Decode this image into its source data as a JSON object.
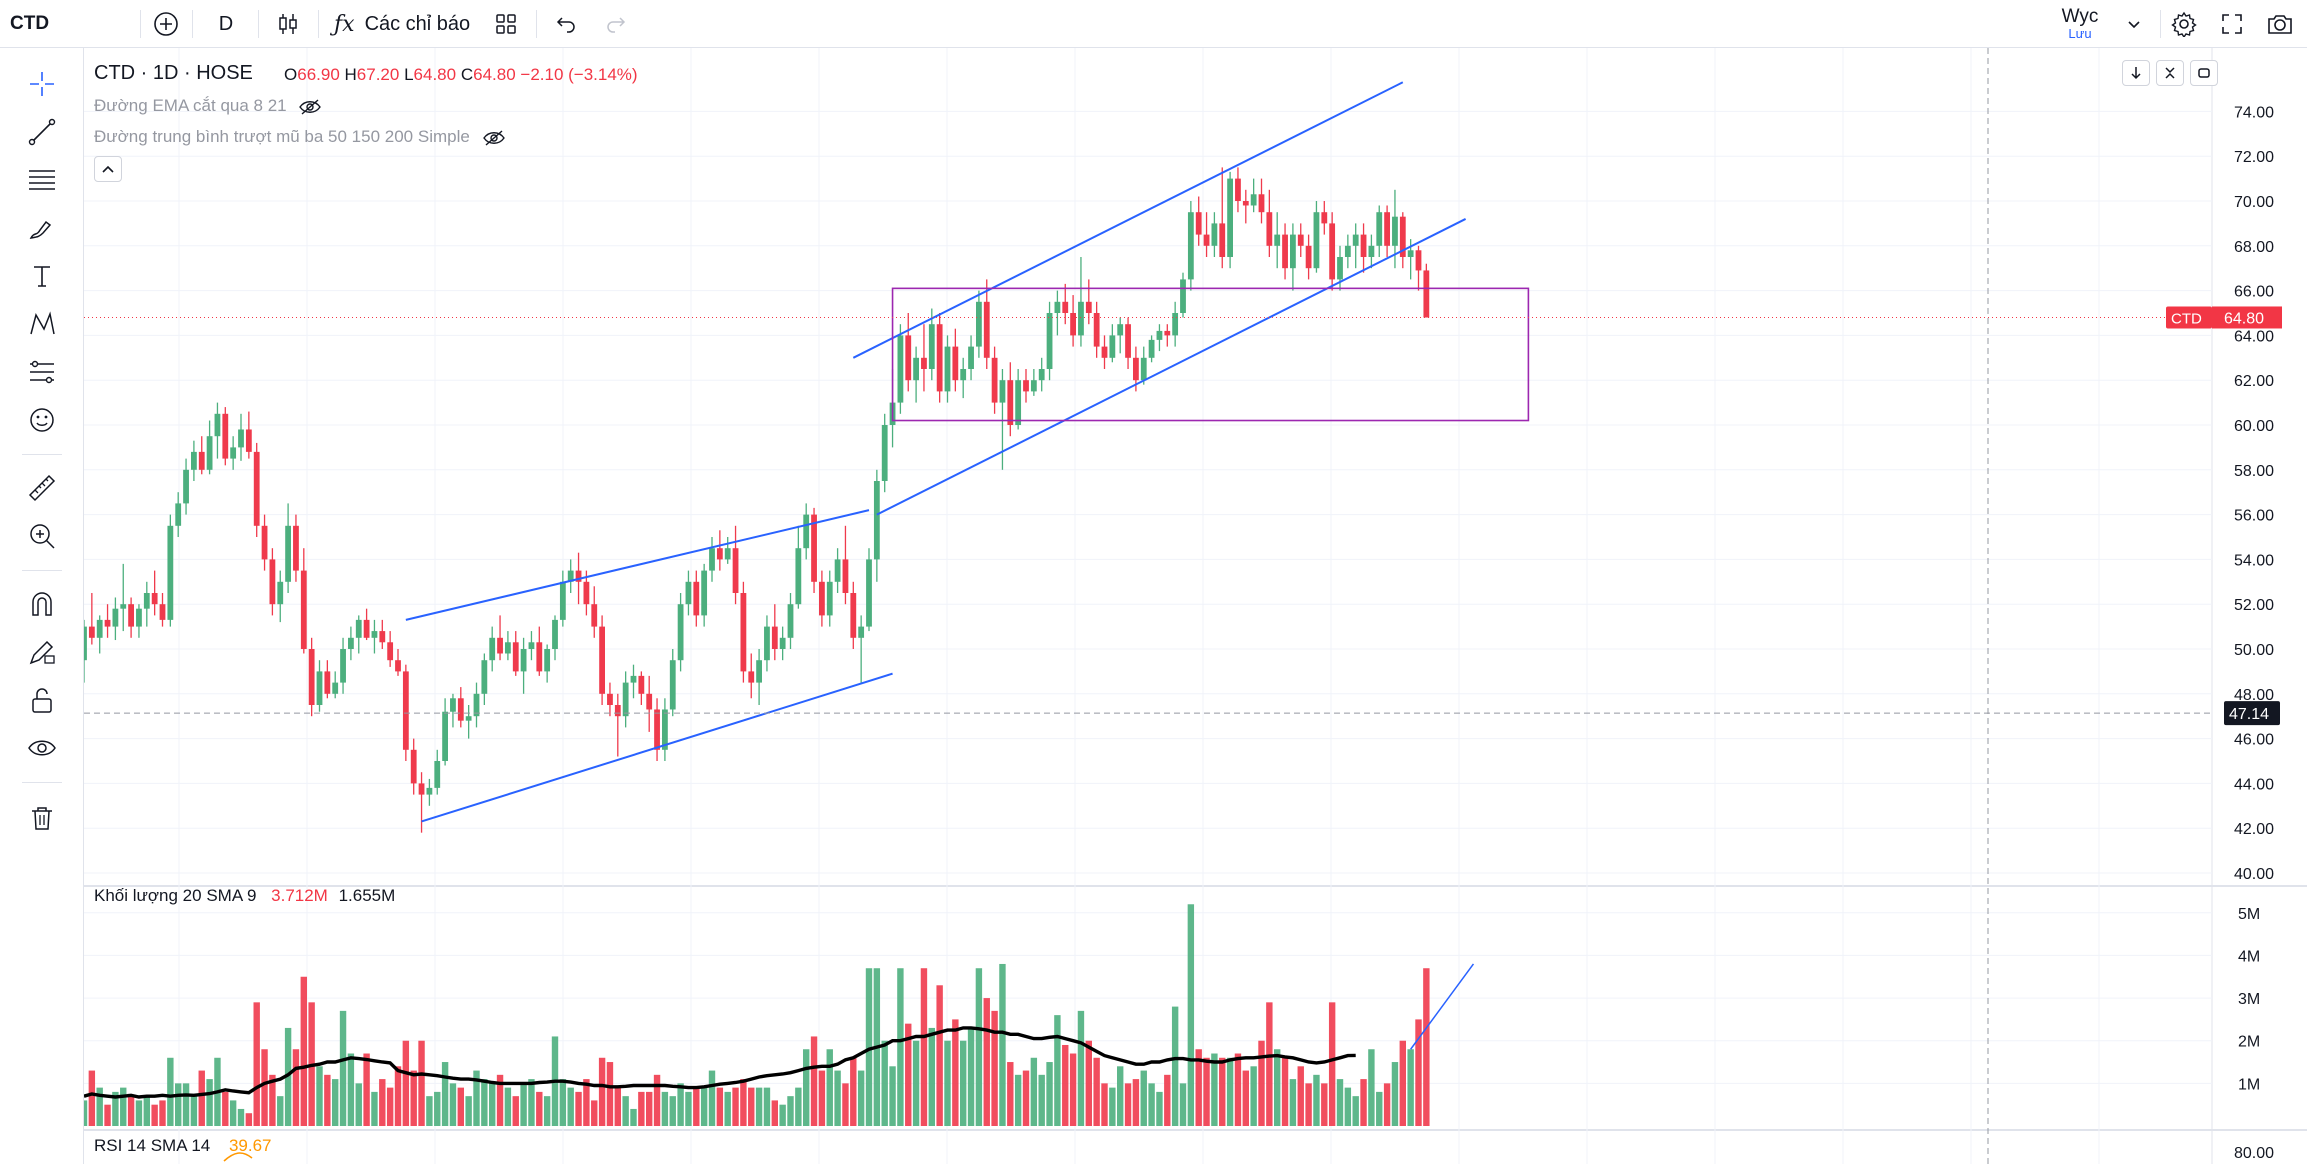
{
  "toolbar": {
    "symbol": "CTD",
    "interval": "D",
    "indicators_label": "Các chỉ báo",
    "layout_name": "Wyc",
    "layout_status": "Lưu"
  },
  "legend": {
    "title": "CTD · 1D · HOSE",
    "open_label": "O",
    "open": "66.90",
    "high_label": "H",
    "high": "67.20",
    "low_label": "L",
    "low": "64.80",
    "close_label": "C",
    "close": "64.80",
    "change": "−2.10 (−3.14%)",
    "ind1": "Đường EMA cắt qua 8 21",
    "ind2": "Đường trung bình trượt mũ ba 50 150 200 Simple",
    "volume_label": "Khối lượng 20 SMA 9",
    "volume_value": "3.712M",
    "volume_sma": "1.655M",
    "rsi_label": "RSI 14 SMA 14",
    "rsi_value": "39.67"
  },
  "price_axis": {
    "ticks": [
      "74.00",
      "72.00",
      "70.00",
      "68.00",
      "66.00",
      "64.00",
      "62.00",
      "60.00",
      "58.00",
      "56.00",
      "54.00",
      "52.00",
      "50.00",
      "48.00",
      "46.00",
      "44.00",
      "42.00",
      "40.00"
    ],
    "last_symbol": "CTD",
    "last_price": "64.80",
    "crosshair_price": "47.14"
  },
  "volume_axis": {
    "ticks": [
      "5M",
      "4M",
      "3M",
      "2M",
      "1M"
    ]
  },
  "rsi_axis": {
    "ticks": [
      "80.00"
    ]
  },
  "colors": {
    "up": "#4caf7e",
    "down": "#ef3a4c",
    "line": "#2962ff",
    "box": "#9c27b0",
    "sma": "#000000"
  },
  "chart_data": {
    "type": "candlestick",
    "symbol": "CTD",
    "interval": "1D",
    "exchange": "HOSE",
    "price_range": [
      39,
      75
    ],
    "volume_range": [
      0,
      5.3
    ],
    "candles": [
      [
        49.5,
        51.3,
        48.5,
        51.0,
        0.6
      ],
      [
        51.0,
        52.5,
        50.2,
        50.5,
        1.3
      ],
      [
        50.5,
        51.5,
        49.8,
        51.3,
        0.9
      ],
      [
        51.3,
        52.0,
        50.5,
        51.0,
        0.5
      ],
      [
        51.0,
        52.3,
        50.4,
        51.8,
        0.8
      ],
      [
        51.8,
        53.8,
        50.8,
        52.0,
        0.9
      ],
      [
        52.0,
        52.3,
        50.5,
        51.0,
        0.7
      ],
      [
        51.0,
        52.0,
        50.5,
        51.8,
        0.6
      ],
      [
        51.8,
        53.0,
        51.0,
        52.5,
        0.7
      ],
      [
        52.5,
        53.5,
        51.5,
        52.0,
        0.5
      ],
      [
        52.0,
        52.5,
        51.0,
        51.3,
        0.6
      ],
      [
        51.3,
        56.0,
        51.0,
        55.5,
        1.6
      ],
      [
        55.5,
        57.0,
        55.0,
        56.5,
        1.0
      ],
      [
        56.5,
        58.5,
        56.0,
        58.0,
        1.0
      ],
      [
        58.0,
        59.3,
        57.5,
        58.8,
        0.7
      ],
      [
        58.8,
        59.5,
        57.8,
        58.0,
        1.3
      ],
      [
        58.0,
        60.2,
        57.8,
        59.5,
        1.1
      ],
      [
        59.5,
        61.0,
        58.5,
        60.5,
        1.6
      ],
      [
        60.5,
        60.8,
        58.2,
        58.5,
        0.8
      ],
      [
        58.5,
        59.5,
        58.0,
        59.0,
        0.6
      ],
      [
        59.0,
        60.5,
        58.4,
        59.8,
        0.4
      ],
      [
        59.8,
        60.6,
        58.5,
        58.8,
        0.3
      ],
      [
        58.8,
        59.2,
        55.0,
        55.5,
        2.9
      ],
      [
        55.5,
        56.0,
        53.5,
        54.0,
        1.8
      ],
      [
        54.0,
        54.5,
        51.5,
        52.0,
        1.2
      ],
      [
        52.0,
        53.5,
        51.2,
        53.0,
        0.7
      ],
      [
        53.0,
        56.5,
        52.5,
        55.5,
        2.3
      ],
      [
        55.5,
        56.0,
        53.0,
        53.5,
        1.8
      ],
      [
        53.5,
        54.5,
        49.8,
        50.0,
        3.5
      ],
      [
        50.0,
        50.5,
        47.0,
        47.5,
        2.9
      ],
      [
        47.5,
        49.5,
        47.2,
        49.0,
        1.4
      ],
      [
        49.0,
        49.5,
        47.8,
        48.0,
        1.2
      ],
      [
        48.0,
        49.0,
        47.8,
        48.5,
        1.1
      ],
      [
        48.5,
        50.5,
        48.0,
        50.0,
        2.7
      ],
      [
        50.0,
        51.0,
        49.5,
        50.5,
        1.7
      ],
      [
        50.5,
        51.5,
        49.8,
        51.3,
        1.0
      ],
      [
        51.3,
        51.8,
        50.4,
        50.5,
        1.7
      ],
      [
        50.5,
        51.3,
        49.8,
        50.8,
        0.8
      ],
      [
        50.8,
        51.3,
        50.0,
        50.3,
        1.1
      ],
      [
        50.3,
        50.8,
        49.2,
        49.5,
        0.9
      ],
      [
        49.5,
        50.0,
        48.8,
        49.0,
        1.4
      ],
      [
        49.0,
        49.3,
        45.0,
        45.5,
        2.0
      ],
      [
        45.5,
        46.0,
        43.5,
        44.0,
        1.3
      ],
      [
        44.0,
        44.5,
        41.8,
        43.5,
        2.0
      ],
      [
        43.5,
        44.2,
        43.0,
        43.8,
        0.7
      ],
      [
        43.8,
        45.5,
        43.5,
        45.0,
        0.8
      ],
      [
        45.0,
        47.8,
        44.8,
        47.2,
        1.5
      ],
      [
        47.2,
        48.0,
        46.5,
        47.8,
        1.0
      ],
      [
        47.8,
        48.3,
        46.5,
        46.8,
        0.9
      ],
      [
        46.8,
        47.5,
        46.0,
        47.0,
        0.7
      ],
      [
        47.0,
        48.5,
        46.5,
        48.0,
        1.3
      ],
      [
        48.0,
        49.8,
        47.5,
        49.5,
        1.1
      ],
      [
        49.5,
        51.0,
        49.0,
        50.5,
        1.0
      ],
      [
        50.5,
        51.5,
        49.5,
        49.8,
        1.2
      ],
      [
        49.8,
        50.8,
        49.5,
        50.3,
        0.9
      ],
      [
        50.3,
        50.8,
        48.8,
        49.0,
        0.7
      ],
      [
        49.0,
        50.5,
        48.0,
        50.0,
        1.0
      ],
      [
        50.0,
        50.8,
        49.5,
        50.3,
        1.1
      ],
      [
        50.3,
        51.0,
        48.8,
        49.0,
        0.8
      ],
      [
        49.0,
        50.2,
        48.5,
        50.0,
        0.7
      ],
      [
        50.0,
        51.5,
        49.5,
        51.3,
        2.1
      ],
      [
        51.3,
        53.5,
        51.0,
        53.0,
        1.1
      ],
      [
        53.0,
        54.0,
        52.5,
        53.5,
        0.9
      ],
      [
        53.5,
        54.3,
        52.0,
        53.0,
        0.8
      ],
      [
        53.0,
        53.5,
        51.5,
        52.0,
        1.1
      ],
      [
        52.0,
        52.8,
        50.5,
        51.0,
        0.6
      ],
      [
        51.0,
        51.5,
        47.5,
        48.0,
        1.6
      ],
      [
        48.0,
        48.5,
        47.0,
        47.5,
        1.5
      ],
      [
        47.5,
        48.0,
        45.2,
        47.0,
        0.9
      ],
      [
        47.0,
        49.0,
        46.5,
        48.5,
        0.7
      ],
      [
        48.5,
        49.3,
        47.8,
        48.8,
        0.4
      ],
      [
        48.8,
        49.0,
        47.5,
        48.0,
        0.8
      ],
      [
        48.0,
        48.8,
        46.3,
        47.3,
        0.8
      ],
      [
        47.3,
        47.8,
        45.0,
        45.5,
        1.2
      ],
      [
        45.5,
        47.8,
        45.0,
        47.3,
        0.8
      ],
      [
        47.3,
        50.0,
        47.0,
        49.5,
        0.7
      ],
      [
        49.5,
        52.5,
        49.0,
        52.0,
        1.0
      ],
      [
        52.0,
        53.5,
        51.5,
        53.0,
        0.8
      ],
      [
        53.0,
        53.5,
        51.0,
        51.5,
        0.9
      ],
      [
        51.5,
        53.8,
        51.0,
        53.5,
        0.9
      ],
      [
        53.5,
        55.0,
        53.0,
        54.5,
        1.3
      ],
      [
        54.5,
        55.3,
        53.5,
        54.0,
        0.9
      ],
      [
        54.0,
        55.0,
        53.8,
        54.5,
        0.8
      ],
      [
        54.5,
        55.5,
        52.0,
        52.5,
        0.9
      ],
      [
        52.5,
        53.0,
        48.5,
        49.0,
        1.1
      ],
      [
        49.0,
        49.8,
        47.8,
        48.5,
        0.9
      ],
      [
        48.5,
        50.0,
        47.5,
        49.5,
        0.9
      ],
      [
        49.5,
        51.5,
        49.0,
        51.0,
        0.9
      ],
      [
        51.0,
        52.0,
        49.5,
        50.0,
        0.6
      ],
      [
        50.0,
        51.0,
        49.5,
        50.5,
        0.5
      ],
      [
        50.5,
        52.5,
        50.0,
        52.0,
        0.7
      ],
      [
        52.0,
        55.5,
        51.8,
        54.5,
        0.9
      ],
      [
        54.5,
        56.5,
        54.0,
        56.0,
        1.8
      ],
      [
        56.0,
        56.3,
        52.5,
        53.0,
        2.1
      ],
      [
        53.0,
        53.5,
        51.0,
        51.5,
        1.3
      ],
      [
        51.5,
        53.5,
        51.0,
        53.0,
        1.8
      ],
      [
        53.0,
        54.5,
        52.5,
        54.0,
        1.3
      ],
      [
        54.0,
        55.5,
        52.0,
        52.5,
        1.0
      ],
      [
        52.5,
        53.0,
        50.0,
        50.5,
        1.6
      ],
      [
        50.5,
        51.5,
        48.5,
        51.0,
        1.3
      ],
      [
        51.0,
        54.5,
        50.8,
        54.0,
        3.7
      ],
      [
        54.0,
        58.0,
        53.0,
        57.5,
        3.7
      ],
      [
        57.5,
        60.5,
        57.0,
        60.0,
        2.0
      ],
      [
        60.0,
        62.5,
        59.0,
        61.0,
        1.4
      ],
      [
        61.0,
        64.5,
        60.5,
        64.0,
        3.7
      ],
      [
        64.0,
        65.0,
        61.5,
        62.0,
        2.4
      ],
      [
        62.0,
        63.5,
        61.0,
        63.0,
        2.0
      ],
      [
        63.0,
        64.5,
        61.5,
        62.5,
        3.7
      ],
      [
        62.5,
        65.2,
        62.0,
        64.5,
        2.3
      ],
      [
        64.5,
        65.0,
        61.0,
        61.5,
        3.3
      ],
      [
        61.5,
        64.0,
        61.0,
        63.5,
        2.0
      ],
      [
        63.5,
        64.3,
        61.5,
        62.0,
        2.5
      ],
      [
        62.0,
        63.0,
        61.2,
        62.5,
        2.0
      ],
      [
        62.5,
        64.0,
        62.0,
        63.5,
        2.3
      ],
      [
        63.5,
        66.0,
        63.0,
        65.5,
        3.7
      ],
      [
        65.5,
        66.5,
        62.5,
        63.0,
        3.0
      ],
      [
        63.0,
        63.5,
        60.5,
        61.0,
        2.7
      ],
      [
        61.0,
        62.5,
        58.0,
        62.0,
        3.8
      ],
      [
        62.0,
        62.8,
        59.5,
        60.0,
        1.5
      ],
      [
        60.0,
        62.5,
        59.8,
        62.0,
        1.2
      ],
      [
        62.0,
        62.5,
        61.0,
        61.5,
        1.3
      ],
      [
        61.5,
        62.5,
        61.3,
        62.0,
        1.6
      ],
      [
        62.0,
        63.0,
        61.5,
        62.5,
        1.2
      ],
      [
        62.5,
        65.5,
        62.0,
        65.0,
        1.5
      ],
      [
        65.0,
        66.0,
        64.0,
        65.5,
        2.6
      ],
      [
        65.5,
        66.3,
        64.5,
        65.0,
        1.9
      ],
      [
        65.0,
        65.8,
        63.5,
        64.0,
        1.7
      ],
      [
        64.0,
        67.5,
        63.5,
        65.5,
        2.7
      ],
      [
        65.5,
        66.5,
        64.5,
        65.0,
        2.0
      ],
      [
        65.0,
        65.5,
        63.0,
        63.5,
        1.6
      ],
      [
        63.5,
        64.0,
        62.5,
        63.0,
        1.0
      ],
      [
        63.0,
        64.5,
        62.8,
        64.0,
        0.9
      ],
      [
        64.0,
        64.8,
        63.2,
        64.5,
        1.4
      ],
      [
        64.5,
        64.8,
        62.5,
        63.0,
        1.0
      ],
      [
        63.0,
        63.5,
        61.5,
        62.0,
        1.1
      ],
      [
        62.0,
        63.5,
        61.8,
        63.0,
        1.3
      ],
      [
        63.0,
        64.0,
        62.8,
        63.8,
        1.0
      ],
      [
        63.8,
        64.5,
        63.3,
        64.2,
        0.8
      ],
      [
        64.2,
        64.5,
        63.5,
        64.0,
        1.2
      ],
      [
        64.0,
        65.5,
        63.5,
        65.0,
        2.8
      ],
      [
        65.0,
        66.8,
        64.8,
        66.5,
        1.0
      ],
      [
        66.5,
        70.0,
        66.0,
        69.5,
        5.2
      ],
      [
        69.5,
        70.2,
        68.0,
        68.5,
        1.8
      ],
      [
        68.5,
        69.5,
        67.5,
        68.0,
        1.6
      ],
      [
        68.0,
        69.5,
        67.5,
        69.0,
        1.7
      ],
      [
        69.0,
        71.5,
        67.0,
        67.5,
        1.6
      ],
      [
        67.5,
        71.3,
        67.0,
        71.0,
        1.6
      ],
      [
        71.0,
        71.5,
        69.5,
        70.0,
        1.7
      ],
      [
        70.0,
        70.5,
        69.0,
        69.8,
        1.3
      ],
      [
        69.8,
        71.0,
        69.5,
        70.3,
        1.4
      ],
      [
        70.3,
        71.0,
        69.0,
        69.5,
        2.0
      ],
      [
        69.5,
        70.5,
        67.5,
        68.0,
        2.9
      ],
      [
        68.0,
        69.5,
        67.0,
        68.5,
        1.8
      ],
      [
        68.5,
        69.0,
        66.5,
        67.0,
        1.6
      ],
      [
        67.0,
        69.0,
        66.0,
        68.5,
        1.1
      ],
      [
        68.5,
        69.0,
        67.5,
        68.0,
        1.4
      ],
      [
        68.0,
        68.5,
        66.5,
        67.0,
        1.0
      ],
      [
        67.0,
        70.0,
        66.8,
        69.5,
        1.2
      ],
      [
        69.5,
        70.0,
        68.5,
        69.0,
        1.0
      ],
      [
        69.0,
        69.5,
        66.0,
        66.5,
        2.9
      ],
      [
        66.5,
        68.0,
        66.0,
        67.5,
        1.1
      ],
      [
        67.5,
        68.5,
        67.0,
        68.0,
        0.9
      ],
      [
        68.0,
        69.0,
        67.0,
        68.5,
        0.7
      ],
      [
        68.5,
        69.0,
        66.8,
        67.5,
        1.1
      ],
      [
        67.5,
        68.5,
        67.0,
        68.0,
        1.8
      ],
      [
        68.0,
        69.8,
        67.5,
        69.5,
        0.8
      ],
      [
        69.5,
        69.8,
        67.5,
        68.0,
        1.0
      ],
      [
        68.0,
        70.5,
        67.0,
        69.3,
        1.5
      ],
      [
        69.3,
        69.5,
        67.0,
        67.5,
        2.0
      ],
      [
        67.5,
        68.3,
        66.5,
        67.8,
        1.8
      ],
      [
        67.8,
        68.0,
        66.0,
        66.9,
        2.5
      ],
      [
        66.9,
        67.2,
        64.8,
        64.8,
        3.7
      ]
    ],
    "volume_sma": [
      0.7,
      0.75,
      0.72,
      0.7,
      0.68,
      0.7,
      0.72,
      0.68,
      0.7,
      0.7,
      0.72,
      0.7,
      0.72,
      0.73,
      0.72,
      0.74,
      0.76,
      0.8,
      0.85,
      0.82,
      0.8,
      0.78,
      0.9,
      1.0,
      1.05,
      1.1,
      1.2,
      1.35,
      1.38,
      1.42,
      1.45,
      1.5,
      1.5,
      1.55,
      1.6,
      1.58,
      1.56,
      1.53,
      1.5,
      1.48,
      1.3,
      1.25,
      1.2,
      1.22,
      1.2,
      1.18,
      1.15,
      1.12,
      1.1,
      1.1,
      1.08,
      1.05,
      1.02,
      1.0,
      1.0,
      1.0,
      1.0,
      1.0,
      1.02,
      1.03,
      1.05,
      1.05,
      1.03,
      1.0,
      0.98,
      0.95,
      0.95,
      0.92,
      0.92,
      0.93,
      0.95,
      0.95,
      0.95,
      0.95,
      0.95,
      0.93,
      0.92,
      0.9,
      0.9,
      0.92,
      0.95,
      0.98,
      1.0,
      1.02,
      1.05,
      1.1,
      1.15,
      1.18,
      1.2,
      1.22,
      1.25,
      1.3,
      1.35,
      1.38,
      1.4,
      1.4,
      1.45,
      1.55,
      1.6,
      1.7,
      1.8,
      1.85,
      1.9,
      2.0,
      2.0,
      2.05,
      2.1,
      2.1,
      2.15,
      2.2,
      2.25,
      2.25,
      2.3,
      2.3,
      2.28,
      2.25,
      2.2,
      2.2,
      2.15,
      2.15,
      2.1,
      2.05,
      2.05,
      2.08,
      2.1,
      2.05,
      2.0,
      1.95,
      1.85,
      1.75,
      1.65,
      1.6,
      1.55,
      1.5,
      1.45,
      1.45,
      1.5,
      1.5,
      1.55,
      1.58,
      1.58,
      1.55,
      1.55,
      1.52,
      1.5,
      1.5,
      1.55,
      1.58,
      1.6,
      1.6,
      1.62,
      1.64,
      1.65,
      1.62,
      1.6,
      1.55,
      1.5,
      1.48,
      1.5,
      1.55,
      1.6,
      1.65,
      1.655
    ],
    "channel_lines": [
      {
        "from": [
          41,
          51.3
        ],
        "to": [
          100,
          56.2
        ]
      },
      {
        "from": [
          43,
          42.3
        ],
        "to": [
          103,
          48.9
        ]
      },
      {
        "from": [
          98,
          63.0
        ],
        "to": [
          168,
          75.3
        ]
      },
      {
        "from": [
          101,
          56.0
        ],
        "to": [
          176,
          69.2
        ]
      }
    ],
    "range_box": {
      "from_bar": 103,
      "to_bar": 184,
      "top": 66.1,
      "bottom": 60.2
    },
    "crosshair": {
      "price": 47.14
    }
  }
}
